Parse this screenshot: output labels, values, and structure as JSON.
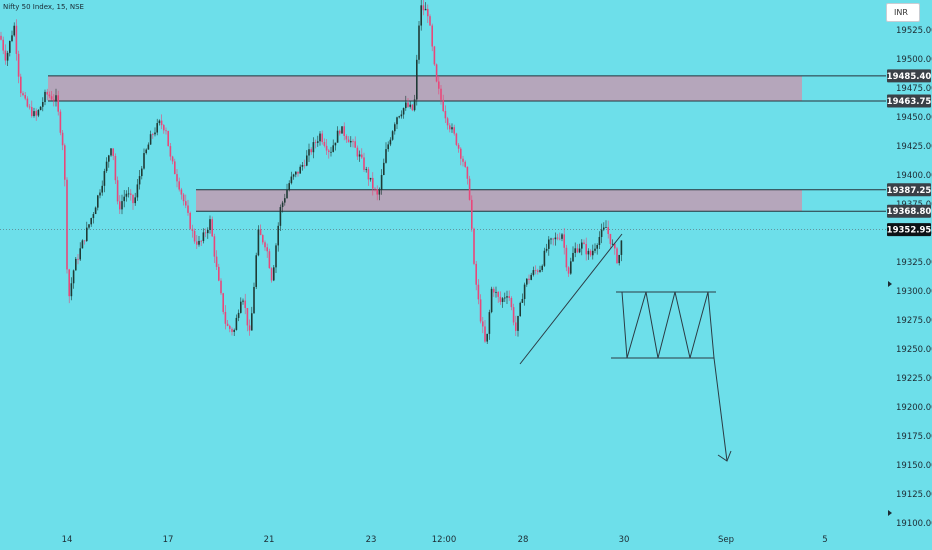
{
  "header": {
    "title": "Nifty 50 Index, 15, NSE",
    "currency": "INR"
  },
  "chart_data": {
    "type": "candlestick",
    "ylim": [
      19100,
      19550
    ],
    "y_ticks": [
      19525,
      19500,
      19475,
      19450,
      19425,
      19400,
      19375,
      19350,
      19325,
      19300,
      19275,
      19250,
      19225,
      19200,
      19175,
      19150,
      19125,
      19100
    ],
    "x_tick_labels": [
      "14",
      "17",
      "21",
      "23",
      "12:00",
      "28",
      "30",
      "Sep",
      "5"
    ],
    "price_labels": [
      {
        "text": "19485.40",
        "value": 19485.4,
        "style": "level"
      },
      {
        "text": "19463.75",
        "value": 19463.75,
        "style": "level"
      },
      {
        "text": "19387.25",
        "value": 19387.25,
        "style": "level"
      },
      {
        "text": "19368.80",
        "value": 19368.8,
        "style": "level"
      },
      {
        "text": "19352.95",
        "value": 19352.95,
        "style": "last"
      }
    ],
    "zones": [
      {
        "from": 19463.75,
        "to": 19485.4
      },
      {
        "from": 19368.8,
        "to": 19387.25
      }
    ],
    "last_price": 19352.95,
    "colors": {
      "up": "#1f3a35",
      "down": "#e8477a",
      "zone": "#b5a6bb",
      "background": "#6ddfea",
      "line": "#2b3b44"
    }
  }
}
